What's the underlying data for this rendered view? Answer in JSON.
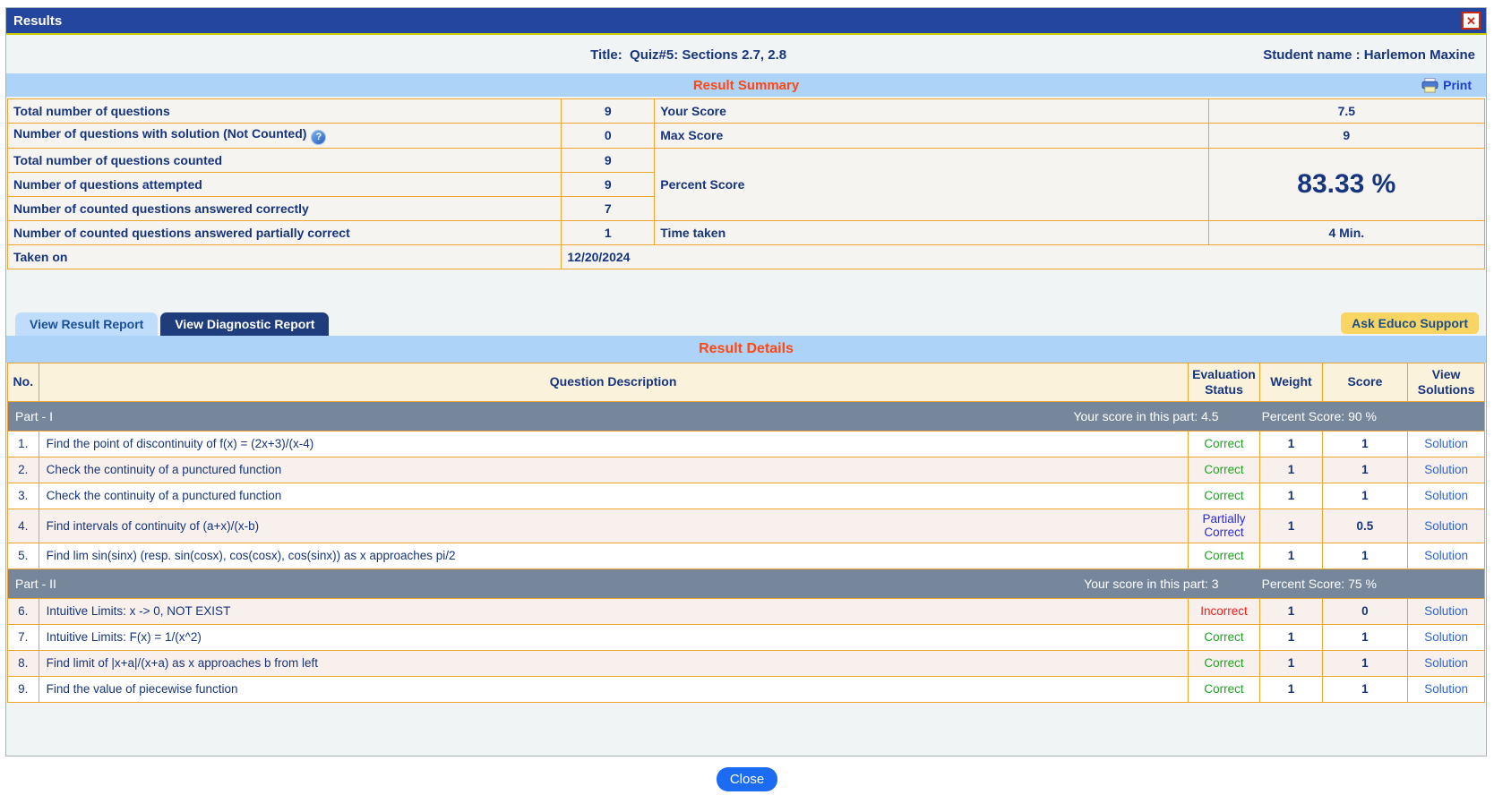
{
  "window": {
    "title": "Results",
    "close_glyph": "✕"
  },
  "header": {
    "quiz_title_label": "Title:",
    "quiz_title": "Quiz#5: Sections 2.7, 2.8",
    "student_label": "Student name :",
    "student_name": "Harlemon Maxine"
  },
  "summary": {
    "heading": "Result Summary",
    "print_label": "Print",
    "help_icon_glyph": "?",
    "left": [
      {
        "label": "Total number of questions",
        "value": "9"
      },
      {
        "label": "Number of questions with solution (Not Counted)",
        "value": "0"
      },
      {
        "label": "Total number of questions counted",
        "value": "9"
      },
      {
        "label": "Number of questions attempted",
        "value": "9"
      },
      {
        "label": "Number of counted questions answered correctly",
        "value": "7"
      },
      {
        "label": "Number of counted questions answered partially correct",
        "value": "1"
      }
    ],
    "right": {
      "your_score_label": "Your Score",
      "your_score": "7.5",
      "max_score_label": "Max Score",
      "max_score": "9",
      "percent_label": "Percent Score",
      "percent_value": "83.33 %",
      "time_label": "Time taken",
      "time_value": "4 Min."
    },
    "taken_on_label": "Taken on",
    "taken_on_value": "12/20/2024"
  },
  "tabs": [
    {
      "label": "View Result Report",
      "active": true
    },
    {
      "label": "View Diagnostic Report",
      "active": false
    }
  ],
  "ask_support_label": "Ask Educo Support",
  "details": {
    "heading": "Result Details",
    "columns": {
      "no": "No.",
      "description": "Question Description",
      "evaluation": "Evaluation Status",
      "weight": "Weight",
      "score": "Score",
      "view": "View Solutions"
    },
    "solution_label": "Solution",
    "parts": [
      {
        "name": "Part - I",
        "score_text": "Your score in this part: 4.5",
        "percent_text": "Percent Score: 90 %",
        "rows": [
          {
            "no": "1.",
            "desc": "Find the point of discontinuity of f(x) = (2x+3)/(x-4)",
            "status": "Correct",
            "status_type": "correct",
            "weight": "1",
            "score": "1"
          },
          {
            "no": "2.",
            "desc": "Check the continuity of a punctured function",
            "status": "Correct",
            "status_type": "correct",
            "weight": "1",
            "score": "1"
          },
          {
            "no": "3.",
            "desc": "Check the continuity of a punctured function",
            "status": "Correct",
            "status_type": "correct",
            "weight": "1",
            "score": "1"
          },
          {
            "no": "4.",
            "desc": "Find intervals of continuity of (a+x)/(x-b)",
            "status": "Partially Correct",
            "status_type": "partial",
            "weight": "1",
            "score": "0.5"
          },
          {
            "no": "5.",
            "desc": "Find lim sin(sinx) (resp. sin(cosx), cos(cosx), cos(sinx)) as x approaches pi/2",
            "status": "Correct",
            "status_type": "correct",
            "weight": "1",
            "score": "1"
          }
        ]
      },
      {
        "name": "Part - II",
        "score_text": "Your score in this part: 3",
        "percent_text": "Percent Score: 75 %",
        "rows": [
          {
            "no": "6.",
            "desc": "Intuitive Limits: x -> 0, NOT EXIST",
            "status": "Incorrect",
            "status_type": "incorrect",
            "weight": "1",
            "score": "0"
          },
          {
            "no": "7.",
            "desc": "Intuitive Limits: F(x) = 1/(x^2)",
            "status": "Correct",
            "status_type": "correct",
            "weight": "1",
            "score": "1"
          },
          {
            "no": "8.",
            "desc": "Find limit of |x+a|/(x+a) as x approaches b from left",
            "status": "Correct",
            "status_type": "correct",
            "weight": "1",
            "score": "1"
          },
          {
            "no": "9.",
            "desc": "Find the value of piecewise function",
            "status": "Correct",
            "status_type": "correct",
            "weight": "1",
            "score": "1"
          }
        ]
      }
    ]
  },
  "footer": {
    "close_label": "Close"
  },
  "colors": {
    "titlebar": "#24469e",
    "band_blue": "#aed3f8",
    "heading_orange": "#ff4713",
    "table_border": "#efa42d",
    "part_band": "#76879b",
    "correct": "#1ea31e",
    "incorrect": "#ff1a1a",
    "partial": "#2b2bd6",
    "link": "#2e63d4",
    "support_gold": "#fbd563",
    "close_button": "#1b6cf2"
  }
}
